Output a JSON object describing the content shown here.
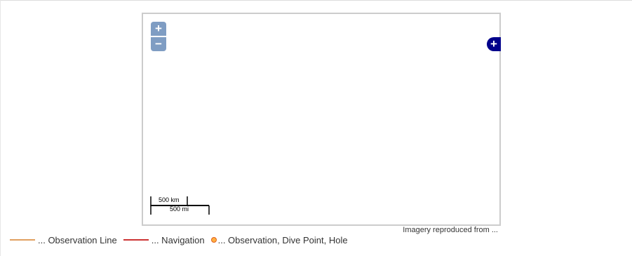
{
  "map": {
    "zoom_in_label": "+",
    "zoom_out_label": "−",
    "layer_switcher_label": "+",
    "scale_top": "500 km",
    "scale_bottom": "500 mi",
    "attribution": "Imagery reproduced from ..."
  },
  "legend": {
    "items": [
      {
        "label": "... Observation Line",
        "color": "#e0a060",
        "symbol": "line"
      },
      {
        "label": "... Navigation",
        "color": "#cc3333",
        "symbol": "line"
      },
      {
        "label": "... Observation, Dive Point, Hole",
        "color": "#ffb040",
        "stroke": "#e06020",
        "symbol": "dot"
      }
    ]
  },
  "colors": {
    "zoom_button": "#7f9dc4",
    "layer_switcher": "#00008b",
    "map_border": "#cccccc"
  }
}
